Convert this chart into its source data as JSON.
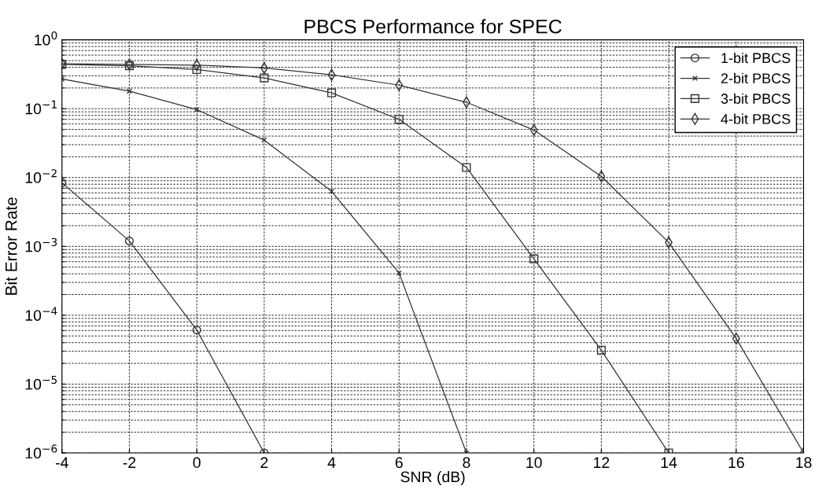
{
  "chart_data": {
    "type": "line",
    "title": "PBCS Performance for SPEC",
    "xlabel": "SNR (dB)",
    "ylabel": "Bit Error Rate",
    "x": [
      -4,
      -2,
      0,
      2,
      4,
      6,
      8,
      10,
      12,
      14,
      16,
      18
    ],
    "series": [
      {
        "name": "1-bit PBCS",
        "color": "#333333",
        "marker": "circle",
        "values": [
          0.0084,
          0.0012,
          6.1e-05,
          1e-06,
          null,
          null,
          null,
          null,
          null,
          null,
          null,
          null
        ]
      },
      {
        "name": "2-bit PBCS",
        "color": "#333333",
        "marker": "cross",
        "values": [
          0.27,
          0.18,
          0.097,
          0.035,
          0.0063,
          0.00041,
          1e-06,
          null,
          null,
          null,
          null,
          null
        ]
      },
      {
        "name": "3-bit PBCS",
        "color": "#333333",
        "marker": "square",
        "values": [
          0.44,
          0.42,
          0.37,
          0.28,
          0.17,
          0.07,
          0.014,
          0.00066,
          3.1e-05,
          1e-06,
          null,
          null
        ]
      },
      {
        "name": "4-bit PBCS",
        "color": "#333333",
        "marker": "diamond",
        "values": [
          0.45,
          0.44,
          0.43,
          0.39,
          0.31,
          0.22,
          0.124,
          0.049,
          0.0104,
          0.00114,
          4.6e-05,
          1e-06
        ]
      }
    ],
    "log": "y",
    "xlim": [
      -4,
      18
    ],
    "xticks": [
      -4,
      -2,
      0,
      2,
      4,
      6,
      8,
      10,
      12,
      14,
      16,
      18
    ],
    "ylim": [
      1e-06,
      1
    ],
    "yticks": [
      {
        "value": 1e-06,
        "label": "10$^{−6}$"
      },
      {
        "value": 1e-05,
        "label": "10$^{−5}$"
      },
      {
        "value": 0.0001,
        "label": "10$^{−4}$"
      },
      {
        "value": 0.001,
        "label": "10$^{−3}$"
      },
      {
        "value": 0.01,
        "label": "10$^{−2}$"
      },
      {
        "value": 0.1,
        "label": "10$^{−1}$"
      },
      {
        "value": 1,
        "label": "10$^{0}$"
      }
    ],
    "grid": true,
    "legend": "top right",
    "line_style": "solid"
  }
}
